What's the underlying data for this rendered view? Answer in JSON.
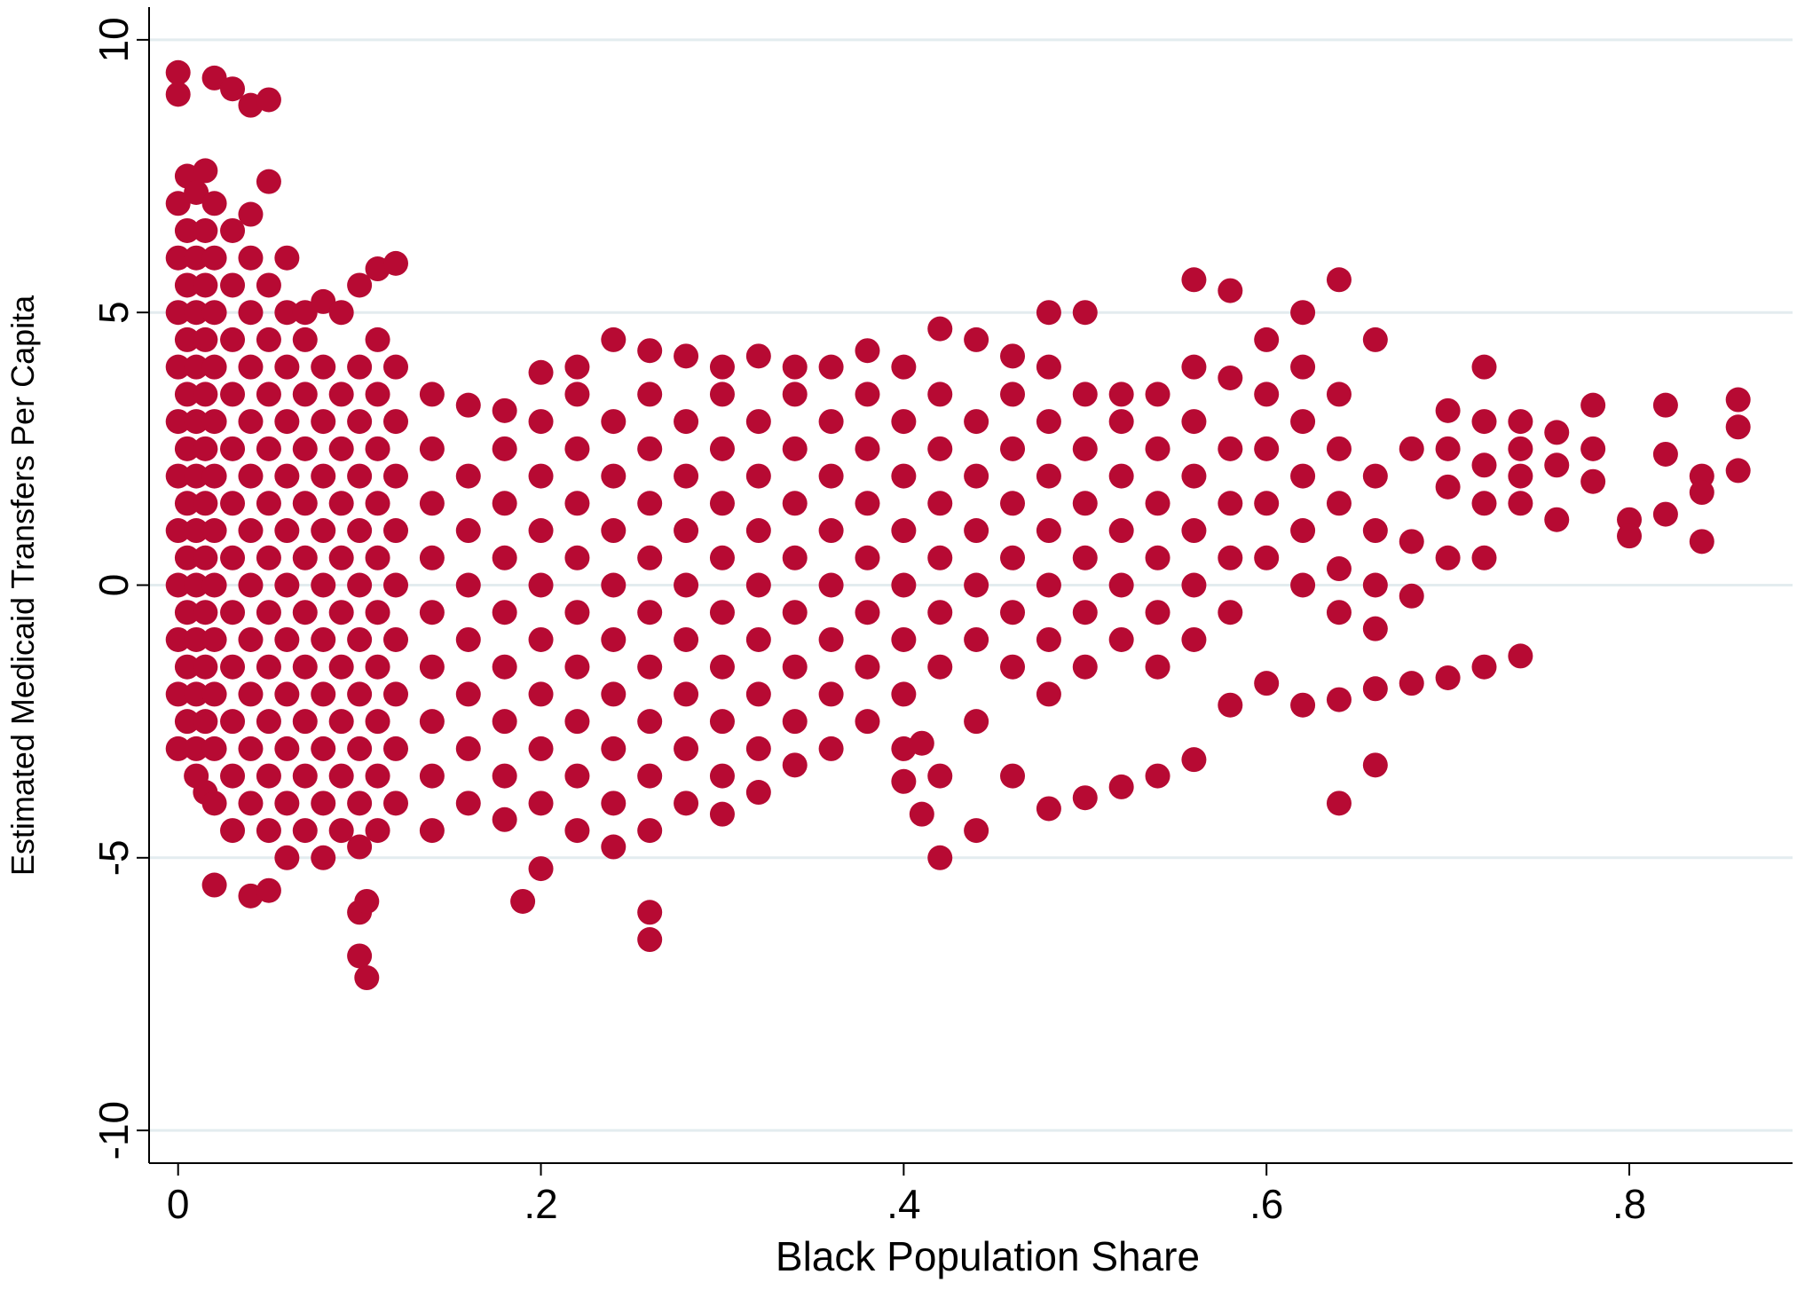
{
  "chart_data": {
    "type": "scatter",
    "x_label": "Black Population Share",
    "y_label": "Estimated Medicaid Transfers Per Capita",
    "color": "#b70a33",
    "grid": true,
    "xlim": [
      -0.016,
      0.89
    ],
    "ylim": [
      -10.6,
      10.6
    ],
    "xticks": [
      0,
      {
        "value": 0.2,
        "label": ".2"
      },
      {
        "value": 0.4,
        "label": ".4"
      },
      {
        "value": 0.6,
        "label": ".6"
      },
      {
        "value": 0.8,
        "label": ".8"
      }
    ],
    "yticks": [
      -10,
      -5,
      0,
      5,
      10
    ],
    "x": [
      0,
      0,
      0,
      0,
      0,
      0,
      0,
      0,
      0,
      0,
      0,
      0,
      0,
      0.005,
      0.005,
      0.005,
      0.005,
      0.005,
      0.005,
      0.005,
      0.005,
      0.005,
      0.005,
      0.005,
      0.01,
      0.01,
      0.01,
      0.01,
      0.01,
      0.01,
      0.01,
      0.01,
      0.01,
      0.01,
      0.01,
      0.01,
      0.015,
      0.015,
      0.015,
      0.015,
      0.015,
      0.015,
      0.015,
      0.015,
      0.015,
      0.015,
      0.015,
      0.015,
      0.02,
      0.02,
      0.02,
      0.02,
      0.02,
      0.02,
      0.02,
      0.02,
      0.02,
      0.02,
      0.02,
      0.02,
      0.02,
      0.02,
      0.03,
      0.03,
      0.03,
      0.03,
      0.03,
      0.03,
      0.03,
      0.03,
      0.03,
      0.03,
      0.03,
      0.03,
      0.03,
      0.04,
      0.04,
      0.04,
      0.04,
      0.04,
      0.04,
      0.04,
      0.04,
      0.04,
      0.04,
      0.04,
      0.04,
      0.04,
      0.04,
      0.05,
      0.05,
      0.05,
      0.05,
      0.05,
      0.05,
      0.05,
      0.05,
      0.05,
      0.05,
      0.05,
      0.05,
      0.05,
      0.05,
      0.06,
      0.06,
      0.06,
      0.06,
      0.06,
      0.06,
      0.06,
      0.06,
      0.06,
      0.06,
      0.06,
      0.06,
      0.07,
      0.07,
      0.07,
      0.07,
      0.07,
      0.07,
      0.07,
      0.07,
      0.07,
      0.07,
      0.07,
      0.08,
      0.08,
      0.08,
      0.08,
      0.08,
      0.08,
      0.08,
      0.08,
      0.08,
      0.08,
      0.08,
      0.09,
      0.09,
      0.09,
      0.09,
      0.09,
      0.09,
      0.09,
      0.09,
      0.09,
      0.09,
      0.1,
      0.1,
      0.1,
      0.1,
      0.1,
      0.1,
      0.1,
      0.1,
      0.1,
      0.1,
      0.1,
      0.1,
      0.1,
      0.104,
      0.104,
      0.11,
      0.11,
      0.11,
      0.11,
      0.11,
      0.11,
      0.11,
      0.11,
      0.11,
      0.11,
      0.11,
      0.12,
      0.12,
      0.12,
      0.12,
      0.12,
      0.12,
      0.12,
      0.12,
      0.12,
      0.12,
      0.14,
      0.14,
      0.14,
      0.14,
      0.14,
      0.14,
      0.14,
      0.14,
      0.14,
      0.16,
      0.16,
      0.16,
      0.16,
      0.16,
      0.16,
      0.16,
      0.16,
      0.18,
      0.18,
      0.18,
      0.18,
      0.18,
      0.18,
      0.18,
      0.18,
      0.18,
      0.19,
      0.2,
      0.2,
      0.2,
      0.2,
      0.2,
      0.2,
      0.2,
      0.2,
      0.2,
      0.2,
      0.22,
      0.22,
      0.22,
      0.22,
      0.22,
      0.22,
      0.22,
      0.22,
      0.22,
      0.22,
      0.24,
      0.24,
      0.24,
      0.24,
      0.24,
      0.24,
      0.24,
      0.24,
      0.24,
      0.24,
      0.26,
      0.26,
      0.26,
      0.26,
      0.26,
      0.26,
      0.26,
      0.26,
      0.26,
      0.26,
      0.26,
      0.26,
      0.28,
      0.28,
      0.28,
      0.28,
      0.28,
      0.28,
      0.28,
      0.28,
      0.28,
      0.3,
      0.3,
      0.3,
      0.3,
      0.3,
      0.3,
      0.3,
      0.3,
      0.3,
      0.3,
      0.32,
      0.32,
      0.32,
      0.32,
      0.32,
      0.32,
      0.32,
      0.32,
      0.32,
      0.34,
      0.34,
      0.34,
      0.34,
      0.34,
      0.34,
      0.34,
      0.34,
      0.34,
      0.36,
      0.36,
      0.36,
      0.36,
      0.36,
      0.36,
      0.36,
      0.36,
      0.38,
      0.38,
      0.38,
      0.38,
      0.38,
      0.38,
      0.38,
      0.38,
      0.4,
      0.4,
      0.4,
      0.4,
      0.4,
      0.4,
      0.4,
      0.4,
      0.4,
      0.41,
      0.41,
      0.42,
      0.42,
      0.42,
      0.42,
      0.42,
      0.42,
      0.42,
      0.42,
      0.42,
      0.44,
      0.44,
      0.44,
      0.44,
      0.44,
      0.44,
      0.44,
      0.44,
      0.46,
      0.46,
      0.46,
      0.46,
      0.46,
      0.46,
      0.46,
      0.46,
      0.48,
      0.48,
      0.48,
      0.48,
      0.48,
      0.48,
      0.48,
      0.48,
      0.48,
      0.5,
      0.5,
      0.5,
      0.5,
      0.5,
      0.5,
      0.5,
      0.5,
      0.52,
      0.52,
      0.52,
      0.52,
      0.52,
      0.52,
      0.52,
      0.54,
      0.54,
      0.54,
      0.54,
      0.54,
      0.54,
      0.54,
      0.56,
      0.56,
      0.56,
      0.56,
      0.56,
      0.56,
      0.56,
      0.56,
      0.58,
      0.58,
      0.58,
      0.58,
      0.58,
      0.58,
      0.58,
      0.6,
      0.6,
      0.6,
      0.6,
      0.6,
      0.6,
      0.62,
      0.62,
      0.62,
      0.62,
      0.62,
      0.62,
      0.62,
      0.64,
      0.64,
      0.64,
      0.64,
      0.64,
      0.64,
      0.64,
      0.64,
      0.66,
      0.66,
      0.66,
      0.66,
      0.66,
      0.66,
      0.66,
      0.68,
      0.68,
      0.68,
      0.68,
      0.7,
      0.7,
      0.7,
      0.7,
      0.7,
      0.72,
      0.72,
      0.72,
      0.72,
      0.72,
      0.72,
      0.74,
      0.74,
      0.74,
      0.74,
      0.74,
      0.76,
      0.76,
      0.76,
      0.78,
      0.78,
      0.78,
      0.8,
      0.8,
      0.82,
      0.82,
      0.82,
      0.84,
      0.84,
      0.84,
      0.86,
      0.86,
      0.86
    ],
    "values": [
      7,
      6,
      5,
      4,
      3,
      2,
      1,
      0,
      -1,
      -2,
      -3,
      9.4,
      9,
      7.5,
      6.5,
      5.5,
      4.5,
      3.5,
      2.5,
      1.5,
      0.5,
      -0.5,
      -1.5,
      -2.5,
      7.2,
      6,
      5,
      4,
      3,
      2,
      1,
      0,
      -1,
      -2,
      -3,
      -3.5,
      7.6,
      6.5,
      5.5,
      4.5,
      3.5,
      2.5,
      1.5,
      0.5,
      -0.5,
      -1.5,
      -2.5,
      -3.8,
      7,
      6,
      5,
      4,
      3,
      2,
      1,
      0,
      -1,
      -2,
      -3,
      -4,
      -5.5,
      9.3,
      6.5,
      5.5,
      4.5,
      3.5,
      2.5,
      1.5,
      0.5,
      -0.5,
      -1.5,
      -2.5,
      -3.5,
      -4.5,
      9.1,
      6.8,
      6,
      5,
      4,
      3,
      2,
      1,
      0,
      -1,
      -2,
      -3,
      -4,
      -5.7,
      8.8,
      7.4,
      5.5,
      4.5,
      3.5,
      2.5,
      1.5,
      0.5,
      -0.5,
      -1.5,
      -2.5,
      -3.5,
      -4.5,
      -5.6,
      8.9,
      6,
      5,
      4,
      3,
      2,
      1,
      0,
      -1,
      -2,
      -3,
      -4,
      -5,
      5,
      4.5,
      3.5,
      2.5,
      1.5,
      0.5,
      -0.5,
      -1.5,
      -2.5,
      -3.5,
      -4.5,
      5.2,
      4,
      3,
      2,
      1,
      0,
      -1,
      -2,
      -3,
      -4,
      -5,
      5,
      3.5,
      2.5,
      1.5,
      0.5,
      -0.5,
      -1.5,
      -2.5,
      -3.5,
      -4.5,
      5.5,
      4,
      3,
      2,
      1,
      0,
      -1,
      -2,
      -3,
      -4,
      -4.8,
      -6,
      -6.8,
      -7.2,
      -5.8,
      5.8,
      4.5,
      3.5,
      2.5,
      1.5,
      0.5,
      -0.5,
      -1.5,
      -2.5,
      -3.5,
      -4.5,
      5.9,
      4,
      3,
      2,
      1,
      0,
      -1,
      -2,
      -3,
      -4,
      3.5,
      2.5,
      1.5,
      0.5,
      -0.5,
      -1.5,
      -2.5,
      -3.5,
      -4.5,
      3.3,
      2,
      1,
      0,
      -1,
      -2,
      -3,
      -4,
      3.2,
      2.5,
      1.5,
      0.5,
      -0.5,
      -1.5,
      -2.5,
      -3.5,
      -4.3,
      -5.8,
      3.9,
      3,
      2,
      1,
      0,
      -1,
      -2,
      -3,
      -4,
      -5.2,
      4,
      3.5,
      2.5,
      1.5,
      0.5,
      -0.5,
      -1.5,
      -2.5,
      -3.5,
      -4.5,
      4.5,
      3,
      2,
      1,
      0,
      -1,
      -2,
      -3,
      -4,
      -4.8,
      4.3,
      3.5,
      2.5,
      1.5,
      0.5,
      -0.5,
      -1.5,
      -2.5,
      -3.5,
      -4.5,
      -6,
      -6.5,
      4.2,
      3,
      2,
      1,
      0,
      -1,
      -2,
      -3,
      -4,
      4,
      3.5,
      2.5,
      1.5,
      0.5,
      -0.5,
      -1.5,
      -2.5,
      -3.5,
      -4.2,
      4.2,
      3,
      2,
      1,
      0,
      -1,
      -2,
      -3,
      -3.8,
      4,
      3.5,
      2.5,
      1.5,
      0.5,
      -0.5,
      -1.5,
      -2.5,
      -3.3,
      4,
      3,
      2,
      1,
      0,
      -1,
      -2,
      -3,
      4.3,
      3.5,
      2.5,
      1.5,
      0.5,
      -0.5,
      -1.5,
      -2.5,
      4,
      3,
      2,
      1,
      0,
      -1,
      -2,
      -3,
      -3.6,
      -4.2,
      -2.9,
      4.7,
      3.5,
      2.5,
      1.5,
      0.5,
      -0.5,
      -1.5,
      -3.5,
      -5,
      4.5,
      3,
      2,
      1,
      0,
      -1,
      -2.5,
      -4.5,
      4.2,
      3.5,
      2.5,
      1.5,
      0.5,
      -0.5,
      -1.5,
      -3.5,
      5,
      4,
      3,
      2,
      1,
      0,
      -1,
      -2,
      -4.1,
      5,
      3.5,
      2.5,
      1.5,
      0.5,
      -0.5,
      -1.5,
      -3.9,
      3.5,
      3,
      2,
      1,
      0,
      -1,
      -3.7,
      3.5,
      2.5,
      1.5,
      0.5,
      -0.5,
      -1.5,
      -3.5,
      5.6,
      4,
      3,
      2,
      1,
      0,
      -1,
      -3.2,
      5.4,
      3.8,
      2.5,
      1.5,
      0.5,
      -0.5,
      -2.2,
      4.5,
      3.5,
      2.5,
      1.5,
      0.5,
      -1.8,
      5,
      4,
      3,
      2,
      1,
      0,
      -2.2,
      5.6,
      3.5,
      2.5,
      1.5,
      0.3,
      -0.5,
      -2.1,
      -4,
      4.5,
      2,
      1,
      0,
      -0.8,
      -1.9,
      -3.3,
      2.5,
      0.8,
      -0.2,
      -1.8,
      3.2,
      2.5,
      1.8,
      0.5,
      -1.7,
      4,
      3,
      2.2,
      1.5,
      0.5,
      -1.5,
      3,
      2.5,
      2,
      1.5,
      -1.3,
      2.8,
      2.2,
      1.2,
      3.3,
      2.5,
      1.9,
      1.2,
      0.9,
      3.3,
      1.3,
      2.4,
      2,
      1.7,
      0.8,
      3.4,
      2.9,
      2.1
    ]
  }
}
